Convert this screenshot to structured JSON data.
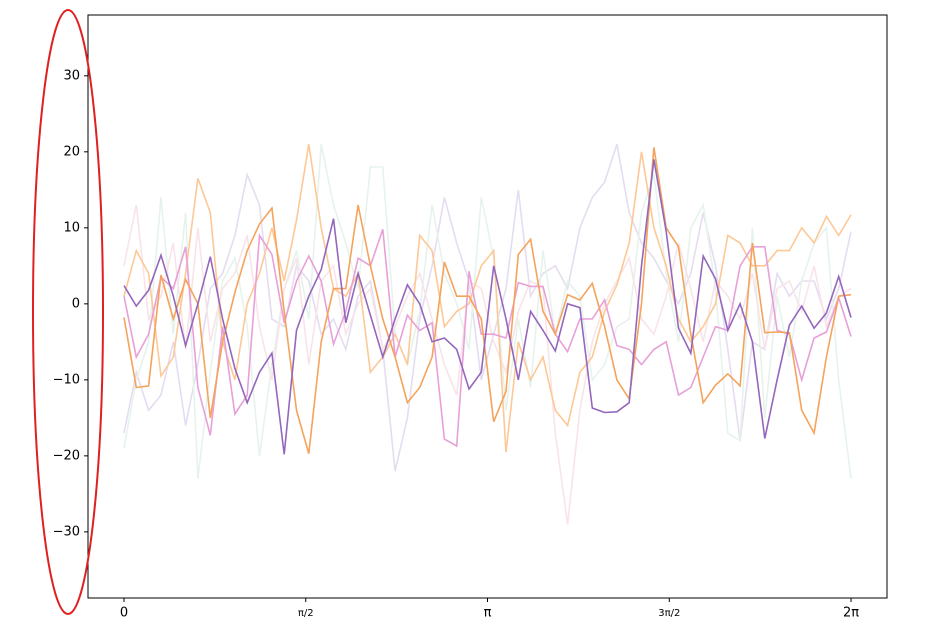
{
  "chart_data": {
    "type": "line",
    "x": [
      0,
      0.1065,
      0.213,
      0.3195,
      0.426,
      0.5325,
      0.639,
      0.7455,
      0.852,
      0.9584,
      1.0649,
      1.1714,
      1.2779,
      1.3844,
      1.4909,
      1.5974,
      1.7039,
      1.8104,
      1.9169,
      2.0234,
      2.1299,
      2.2364,
      2.3429,
      2.4494,
      2.5559,
      2.6624,
      2.7688,
      2.8753,
      2.9818,
      3.0883,
      3.1948,
      3.3013,
      3.4078,
      3.5143,
      3.6208,
      3.7273,
      3.8338,
      3.9403,
      4.0468,
      4.1533,
      4.2598,
      4.3663,
      4.4728,
      4.5793,
      4.6857,
      4.7922,
      4.8987,
      5.0052,
      5.1117,
      5.2182,
      5.3247,
      5.4312,
      5.5377,
      5.6442,
      5.7507,
      5.8572,
      5.9637,
      6.0702,
      6.1767,
      6.2832
    ],
    "series": [
      {
        "color": "#e4ddf0",
        "values": [
          -17,
          -9,
          -14,
          -12,
          -5,
          -16,
          -8,
          2,
          4,
          9,
          17,
          13,
          -2,
          -3,
          5,
          3,
          -4,
          -2,
          -6,
          1,
          3,
          -6,
          -22,
          -15,
          -2,
          5,
          14,
          8,
          3,
          -10,
          -4,
          2,
          15,
          1,
          4,
          5,
          2,
          10,
          14,
          16,
          21,
          12,
          8,
          6,
          3,
          0,
          4,
          12,
          5,
          -6,
          -18,
          -5,
          -6,
          4,
          1,
          3,
          3,
          -2,
          2,
          9.5
        ]
      },
      {
        "color": "#e6f3ec",
        "values": [
          -19,
          -10,
          -5,
          14,
          -4,
          12,
          -23,
          -9,
          3,
          6,
          -3,
          -20,
          -8,
          2,
          7,
          -2,
          21,
          13,
          8,
          2,
          18,
          18,
          -4,
          -8,
          -1,
          13,
          4,
          0,
          -6,
          14,
          6,
          -14,
          -2,
          -11,
          7,
          -4,
          3,
          1,
          -10,
          -8,
          -3,
          -2,
          12,
          17,
          4,
          -5,
          10,
          13,
          2,
          -17,
          -18,
          10,
          -15,
          1,
          -7,
          3,
          8,
          10,
          -10,
          -23
        ]
      },
      {
        "color": "#f8e4e8",
        "values": [
          5,
          13,
          -2,
          1,
          8,
          -6,
          10,
          -5,
          2,
          4,
          9,
          -3,
          -10,
          2,
          6,
          -8,
          3,
          5,
          -4,
          0,
          2,
          -6,
          -3,
          1,
          4,
          -2,
          -8,
          -12,
          3,
          2,
          -5,
          -9,
          -1,
          3,
          2,
          -17,
          -29,
          -14,
          -5,
          0,
          3,
          6,
          -2,
          -4,
          1,
          8,
          2,
          -5,
          3,
          1,
          -2,
          4,
          -6,
          2,
          3,
          -1,
          5,
          -3,
          1,
          2
        ]
      },
      {
        "color": "#fdc896",
        "values": [
          1,
          7,
          4,
          -9.5,
          -7,
          4,
          16.5,
          12,
          -5,
          -10,
          0,
          4,
          10,
          3,
          11,
          21,
          10,
          2,
          1,
          4,
          -9,
          -7,
          -4,
          -8,
          9,
          7,
          -3,
          -1,
          0,
          5,
          7,
          -19.5,
          -5,
          -10,
          -7,
          -14,
          -16,
          -9,
          -7,
          -1,
          2.5,
          8,
          20,
          10,
          5,
          -2,
          -5,
          -3,
          0,
          9,
          8,
          5,
          5,
          7,
          7,
          10,
          8,
          11.5,
          9,
          11.7
        ]
      },
      {
        "color": "#e8a0d8",
        "values": [
          1,
          -7,
          -4,
          3.5,
          2,
          7.5,
          -11,
          -17.3,
          -3,
          -14.5,
          -12,
          9,
          6.5,
          -2.5,
          3,
          6.3,
          3,
          -5.3,
          -1,
          6,
          5,
          9.8,
          -7,
          -1.5,
          -3.5,
          -2.5,
          -17.8,
          -18.7,
          4.3,
          -4,
          -4,
          -4.5,
          2.8,
          2.3,
          2.3,
          -4,
          -6.3,
          -2,
          -2,
          0.5,
          -5.5,
          -6,
          -8,
          -6,
          -5,
          -12,
          -11,
          -7,
          -3,
          -3.5,
          5,
          7.5,
          7.5,
          -3.5,
          -4,
          -10,
          -4.5,
          -3.7,
          0.8,
          -4.3
        ]
      },
      {
        "color": "#f5a35a",
        "values": [
          -1.8,
          -11,
          -10.8,
          3.8,
          -2,
          3.2,
          0,
          -15,
          -5,
          1.5,
          7,
          10.5,
          12.6,
          -1,
          -14,
          -19.7,
          -5,
          2,
          2,
          13,
          5,
          -2,
          -7,
          -13,
          -11,
          -7,
          5.5,
          1,
          1,
          -2,
          -15.5,
          -11.5,
          6.5,
          8.5,
          -1,
          -4,
          1.2,
          0.5,
          2.7,
          -3,
          -10,
          -12.5,
          0,
          20.6,
          10,
          7.5,
          -4,
          -13,
          -10.7,
          -9.2,
          -10.8,
          8,
          -3.8,
          -3.7,
          -3.8,
          -14,
          -17,
          -7,
          1,
          1.2
        ]
      },
      {
        "color": "#9467bd",
        "values": [
          2.4,
          -0.3,
          1.8,
          6.4,
          1,
          -5.5,
          0,
          6.2,
          -2,
          -8.5,
          -13,
          -9,
          -6.5,
          -19.8,
          -3.5,
          1,
          4.5,
          11.2,
          -2.5,
          4,
          -1.5,
          -7,
          -2,
          2.5,
          0,
          -5,
          -4.5,
          -6,
          -11.2,
          -9,
          5,
          -2,
          -10,
          -1,
          -3.5,
          -6.2,
          0,
          -0.5,
          -13.7,
          -14.3,
          -14.2,
          -13,
          5,
          19,
          9.5,
          -3.2,
          -6.5,
          6.3,
          3.3,
          -3.5,
          0,
          -5,
          -17.7,
          -10,
          -2.8,
          -0.3,
          -3.2,
          -1.2,
          3.6,
          -1.8
        ]
      }
    ],
    "xlim": [
      -0.311,
      6.594
    ],
    "ylim": [
      -38.7,
      38.0
    ],
    "xticks": [
      0,
      {
        "value": 1.5708,
        "label": "π/2"
      },
      {
        "value": 3.1416,
        "label": "π"
      },
      {
        "value": 4.7124,
        "label": "3π/2"
      },
      {
        "value": 6.2832,
        "label": "2π"
      }
    ],
    "yticks": [
      {
        "value": -30,
        "label": "−30"
      },
      {
        "value": -20,
        "label": "−20"
      },
      {
        "value": -10,
        "label": "−10"
      },
      0,
      10,
      20,
      30
    ]
  }
}
